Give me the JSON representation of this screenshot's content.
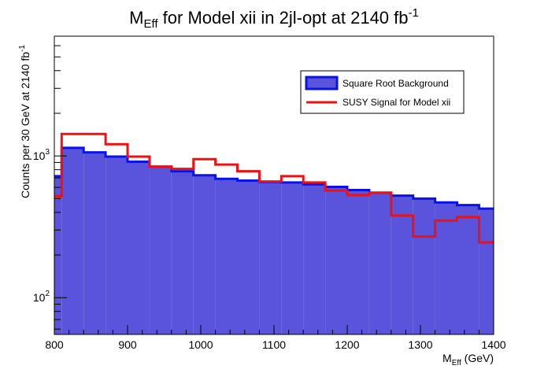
{
  "chart_data": {
    "type": "histogram",
    "title": {
      "prefix": "M",
      "prefix_subscript": "Eff",
      "middle": " for Model xii in 2jl-opt at 2140 fb",
      "superscript": "-1"
    },
    "xlabel": {
      "main": "M",
      "subscript": "Eff",
      "suffix": " (GeV)"
    },
    "ylabel": {
      "main": "Counts per 30 GeV at 2140 fb",
      "superscript": "-1"
    },
    "xlim": [
      800,
      1400
    ],
    "ylim": [
      55,
      7000
    ],
    "yscale": "log",
    "bin_width": 30,
    "bin_edges": [
      780,
      810,
      840,
      870,
      900,
      930,
      960,
      990,
      1020,
      1050,
      1080,
      1110,
      1140,
      1170,
      1200,
      1230,
      1260,
      1290,
      1320,
      1350,
      1380,
      1410
    ],
    "xticks": [
      "800",
      "900",
      "1000",
      "1100",
      "1200",
      "1300",
      "1400"
    ],
    "ytick_labels": [
      {
        "base": "10",
        "exp": "2",
        "value": 100
      },
      {
        "base": "10",
        "exp": "3",
        "value": 1000
      }
    ],
    "series": [
      {
        "name": "Square Root Background",
        "style": "filled",
        "fill": "#5a53dc",
        "line": "#0a13e6",
        "values": [
          720,
          1140,
          1060,
          990,
          910,
          840,
          780,
          730,
          690,
          670,
          655,
          650,
          630,
          605,
          575,
          550,
          525,
          500,
          470,
          450,
          425
        ]
      },
      {
        "name": "SUSY Signal for Model xii",
        "style": "line",
        "line": "#ee1111",
        "values": [
          520,
          1430,
          1430,
          1210,
          990,
          840,
          810,
          950,
          870,
          780,
          660,
          720,
          650,
          570,
          530,
          550,
          380,
          270,
          350,
          370,
          245
        ]
      }
    ],
    "legend_position": "top-right",
    "grid": false
  }
}
